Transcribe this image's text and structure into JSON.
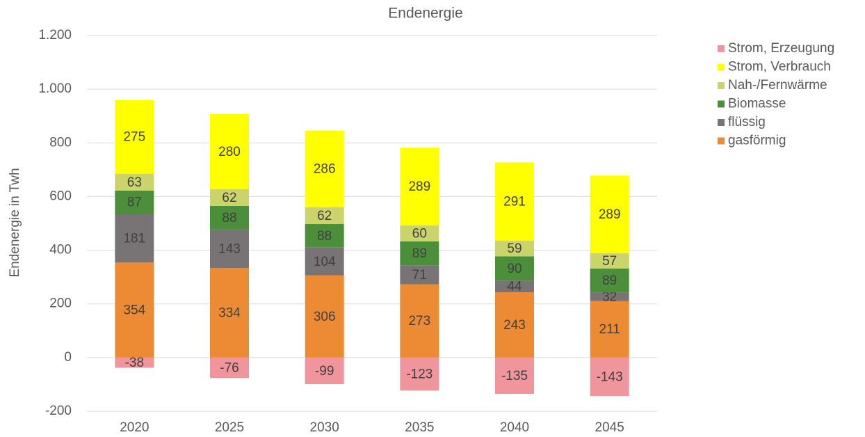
{
  "chart_data": {
    "type": "stacked_bar",
    "title": "Endenergie",
    "y_label": "Endenergie in Twh",
    "categories": [
      "2020",
      "2025",
      "2030",
      "2035",
      "2040",
      "2045"
    ],
    "series": [
      {
        "name": "Strom, Erzeugung",
        "color": "#f0959b",
        "values": [
          -38,
          -76,
          -99,
          -123,
          -135,
          -143
        ]
      },
      {
        "name": "Strom, Verbrauch",
        "color": "#ffff00",
        "values": [
          275,
          280,
          286,
          289,
          291,
          289
        ]
      },
      {
        "name": "Nah-/Fernwärme",
        "color": "#cbd46a",
        "values": [
          63,
          62,
          62,
          60,
          59,
          57
        ]
      },
      {
        "name": "Biomasse",
        "color": "#4b8f3b",
        "values": [
          87,
          88,
          88,
          89,
          90,
          89
        ]
      },
      {
        "name": "flüssig",
        "color": "#787374",
        "values": [
          181,
          143,
          104,
          71,
          44,
          32
        ]
      },
      {
        "name": "gasförmig",
        "color": "#ed8b35",
        "values": [
          354,
          334,
          306,
          273,
          243,
          211
        ]
      }
    ],
    "ylim": [
      -200,
      1200
    ],
    "yticks": [
      -200,
      0,
      200,
      400,
      600,
      800,
      {
        "value": 1000,
        "label": "1.000"
      },
      {
        "value": 1200,
        "label": "1.200"
      }
    ],
    "grid": true,
    "legend": "right"
  }
}
